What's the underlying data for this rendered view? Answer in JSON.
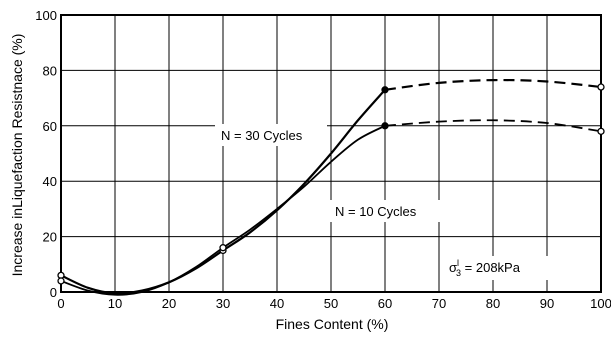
{
  "chart_data": {
    "type": "line",
    "xlabel": "Fines Content (%)",
    "ylabel": "Increase inLiquefaction Resistnace (%)",
    "xlim": [
      0,
      100
    ],
    "ylim": [
      0,
      100
    ],
    "xticks": [
      0,
      10,
      20,
      30,
      40,
      50,
      60,
      70,
      80,
      90,
      100
    ],
    "yticks": [
      0,
      20,
      40,
      60,
      80,
      100
    ],
    "grid": true,
    "series": [
      {
        "name": "N = 30 Cycles",
        "solid": [
          [
            0,
            6
          ],
          [
            5,
            1.5
          ],
          [
            10,
            -0.5
          ],
          [
            15,
            0.5
          ],
          [
            20,
            3.5
          ],
          [
            25,
            8.5
          ],
          [
            30,
            15
          ],
          [
            35,
            21.5
          ],
          [
            40,
            29.5
          ],
          [
            45,
            39
          ],
          [
            50,
            50
          ],
          [
            55,
            62
          ],
          [
            60,
            73
          ]
        ],
        "dashed": [
          [
            60,
            73
          ],
          [
            70,
            75.5
          ],
          [
            80,
            76.5
          ],
          [
            90,
            76
          ],
          [
            100,
            74
          ]
        ],
        "markers": [
          [
            0,
            6
          ],
          [
            30,
            15
          ],
          [
            60,
            73
          ],
          [
            100,
            74
          ]
        ]
      },
      {
        "name": "N = 10 Cycles",
        "solid": [
          [
            0,
            4
          ],
          [
            5,
            0.5
          ],
          [
            10,
            -1
          ],
          [
            15,
            0
          ],
          [
            20,
            3.5
          ],
          [
            25,
            9
          ],
          [
            30,
            16
          ],
          [
            35,
            22.5
          ],
          [
            40,
            30
          ],
          [
            45,
            38
          ],
          [
            50,
            47
          ],
          [
            55,
            55
          ],
          [
            60,
            60
          ]
        ],
        "dashed": [
          [
            60,
            60
          ],
          [
            70,
            61.5
          ],
          [
            80,
            62
          ],
          [
            90,
            61
          ],
          [
            100,
            58
          ]
        ],
        "markers": [
          [
            0,
            4
          ],
          [
            30,
            16
          ],
          [
            60,
            60
          ],
          [
            100,
            58
          ]
        ]
      }
    ],
    "annotations": {
      "label_30": "N = 30 Cycles",
      "label_10": "N = 10 Cycles",
      "sigma": "σ",
      "sigma_prime": "l",
      "sigma_sub": "3",
      "sigma_value": " = 208kPa"
    }
  }
}
